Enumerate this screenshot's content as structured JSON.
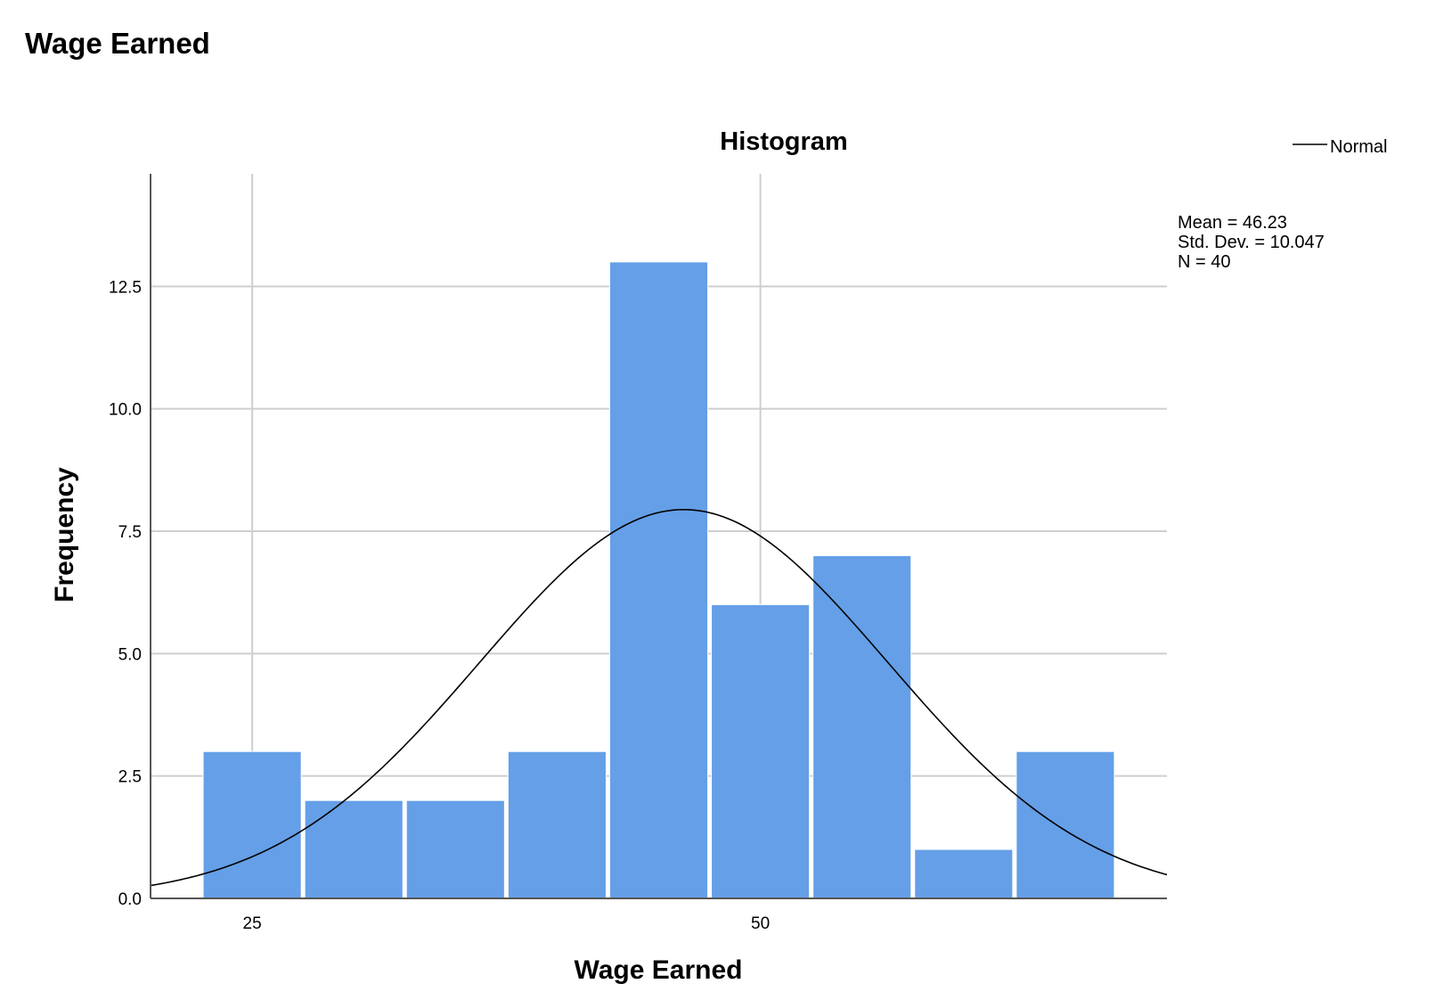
{
  "page": {
    "title": "Wage Earned"
  },
  "chart_data": {
    "type": "bar",
    "subtype": "histogram",
    "title": "Histogram",
    "xlabel": "Wage Earned",
    "ylabel": "Frequency",
    "bin_width": 5,
    "bins": [
      {
        "start": 22.5,
        "end": 27.5,
        "count": 3
      },
      {
        "start": 27.5,
        "end": 32.5,
        "count": 2
      },
      {
        "start": 32.5,
        "end": 37.5,
        "count": 2
      },
      {
        "start": 37.5,
        "end": 42.5,
        "count": 3
      },
      {
        "start": 42.5,
        "end": 47.5,
        "count": 13
      },
      {
        "start": 47.5,
        "end": 52.5,
        "count": 6
      },
      {
        "start": 52.5,
        "end": 57.5,
        "count": 7
      },
      {
        "start": 57.5,
        "end": 62.5,
        "count": 1
      },
      {
        "start": 62.5,
        "end": 67.5,
        "count": 3
      }
    ],
    "xlim": [
      20,
      70
    ],
    "ylim": [
      0,
      14.8
    ],
    "x_ticks": [
      25,
      50
    ],
    "x_tick_labels": [
      "25",
      "50"
    ],
    "y_ticks": [
      0,
      2.5,
      5,
      7.5,
      10,
      12.5
    ],
    "y_tick_labels": [
      "0.0",
      "2.5",
      "5.0",
      "7.5",
      "10.0",
      "12.5"
    ],
    "grid": true,
    "normal_curve": {
      "mean": 46.23,
      "std_dev": 10.047,
      "n": 40
    },
    "legend": {
      "position": "top-right",
      "entries": [
        "Normal"
      ]
    },
    "stats_lines": [
      "Mean = 46.23",
      "Std. Dev. = 10.047",
      "N = 40"
    ],
    "colors": {
      "bar_fill": "#659fe7",
      "bar_stroke": "#ffffff",
      "grid": "#cfcfcf",
      "axis": "#555555",
      "curve": "#000000"
    }
  }
}
